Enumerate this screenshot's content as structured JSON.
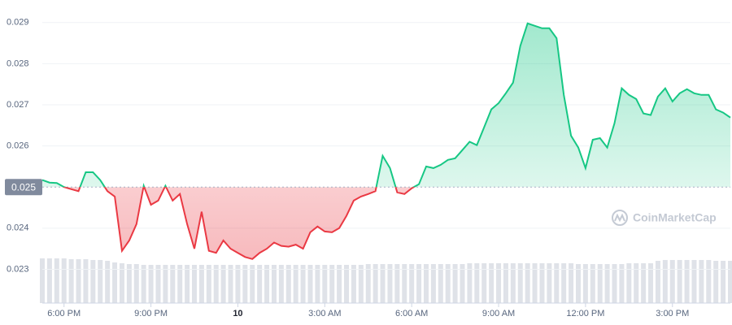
{
  "chart_data": {
    "type": "baseline-line",
    "values": [
      0.02517,
      0.02511,
      0.0251,
      0.025,
      0.02495,
      0.0249,
      0.02536,
      0.02536,
      0.02517,
      0.0249,
      0.02477,
      0.02345,
      0.0237,
      0.0241,
      0.02503,
      0.02457,
      0.02467,
      0.02503,
      0.02467,
      0.02483,
      0.0241,
      0.0235,
      0.0244,
      0.02345,
      0.0234,
      0.0237,
      0.0235,
      0.0234,
      0.0233,
      0.02325,
      0.0234,
      0.0235,
      0.02365,
      0.02357,
      0.02355,
      0.0236,
      0.0235,
      0.0239,
      0.02404,
      0.02392,
      0.0239,
      0.024,
      0.0243,
      0.02467,
      0.02477,
      0.02483,
      0.0249,
      0.02576,
      0.02546,
      0.02487,
      0.02483,
      0.02497,
      0.02507,
      0.0255,
      0.02546,
      0.02554,
      0.02566,
      0.0257,
      0.0259,
      0.0261,
      0.02602,
      0.02645,
      0.02689,
      0.02704,
      0.02728,
      0.02754,
      0.02843,
      0.02898,
      0.02892,
      0.02886,
      0.02886,
      0.02862,
      0.02724,
      0.02625,
      0.02596,
      0.02546,
      0.02615,
      0.02619,
      0.02596,
      0.02655,
      0.0274,
      0.02724,
      0.02714,
      0.02679,
      0.02675,
      0.0272,
      0.0274,
      0.02708,
      0.02728,
      0.02738,
      0.02728,
      0.02724,
      0.02724,
      0.02689,
      0.02681,
      0.02669
    ],
    "volume": [
      55,
      55,
      55,
      55,
      54,
      54,
      54,
      53,
      53,
      52,
      50,
      49,
      48,
      48,
      47,
      47,
      47,
      47,
      47,
      47,
      47,
      47,
      47,
      47,
      47,
      47,
      47,
      47,
      47,
      47,
      47,
      47,
      47,
      47,
      47,
      47,
      47,
      47,
      47,
      47,
      47,
      47,
      47,
      47,
      47,
      48,
      48,
      48,
      48,
      48,
      48,
      48,
      48,
      48,
      48,
      48,
      48,
      48,
      48,
      49,
      49,
      49,
      49,
      49,
      49,
      49,
      49,
      49,
      49,
      49,
      49,
      49,
      49,
      49,
      48,
      48,
      48,
      48,
      48,
      48,
      48,
      49,
      49,
      49,
      49,
      52,
      53,
      53,
      53,
      53,
      53,
      53,
      53,
      52,
      52,
      52
    ],
    "baseline": 0.025,
    "up_color": "#16c784",
    "down_color": "#ea3943",
    "volume_color": "#dfe2e8",
    "xlim": [
      0,
      95
    ],
    "xticks": [
      {
        "value": 3,
        "label": "6:00 PM"
      },
      {
        "value": 15,
        "label": "9:00 PM"
      },
      {
        "value": 27,
        "label": "10"
      },
      {
        "value": 39,
        "label": "3:00 AM"
      },
      {
        "value": 51,
        "label": "6:00 AM"
      },
      {
        "value": 63,
        "label": "9:00 AM"
      },
      {
        "value": 75,
        "label": "12:00 PM"
      },
      {
        "value": 87,
        "label": "3:00 PM"
      }
    ],
    "ylim": [
      0.0221,
      0.02943
    ],
    "yticks": [
      0.023,
      0.024,
      0.026,
      0.027,
      0.028,
      0.029
    ],
    "grid": true,
    "watermark": "CoinMarketCap"
  }
}
